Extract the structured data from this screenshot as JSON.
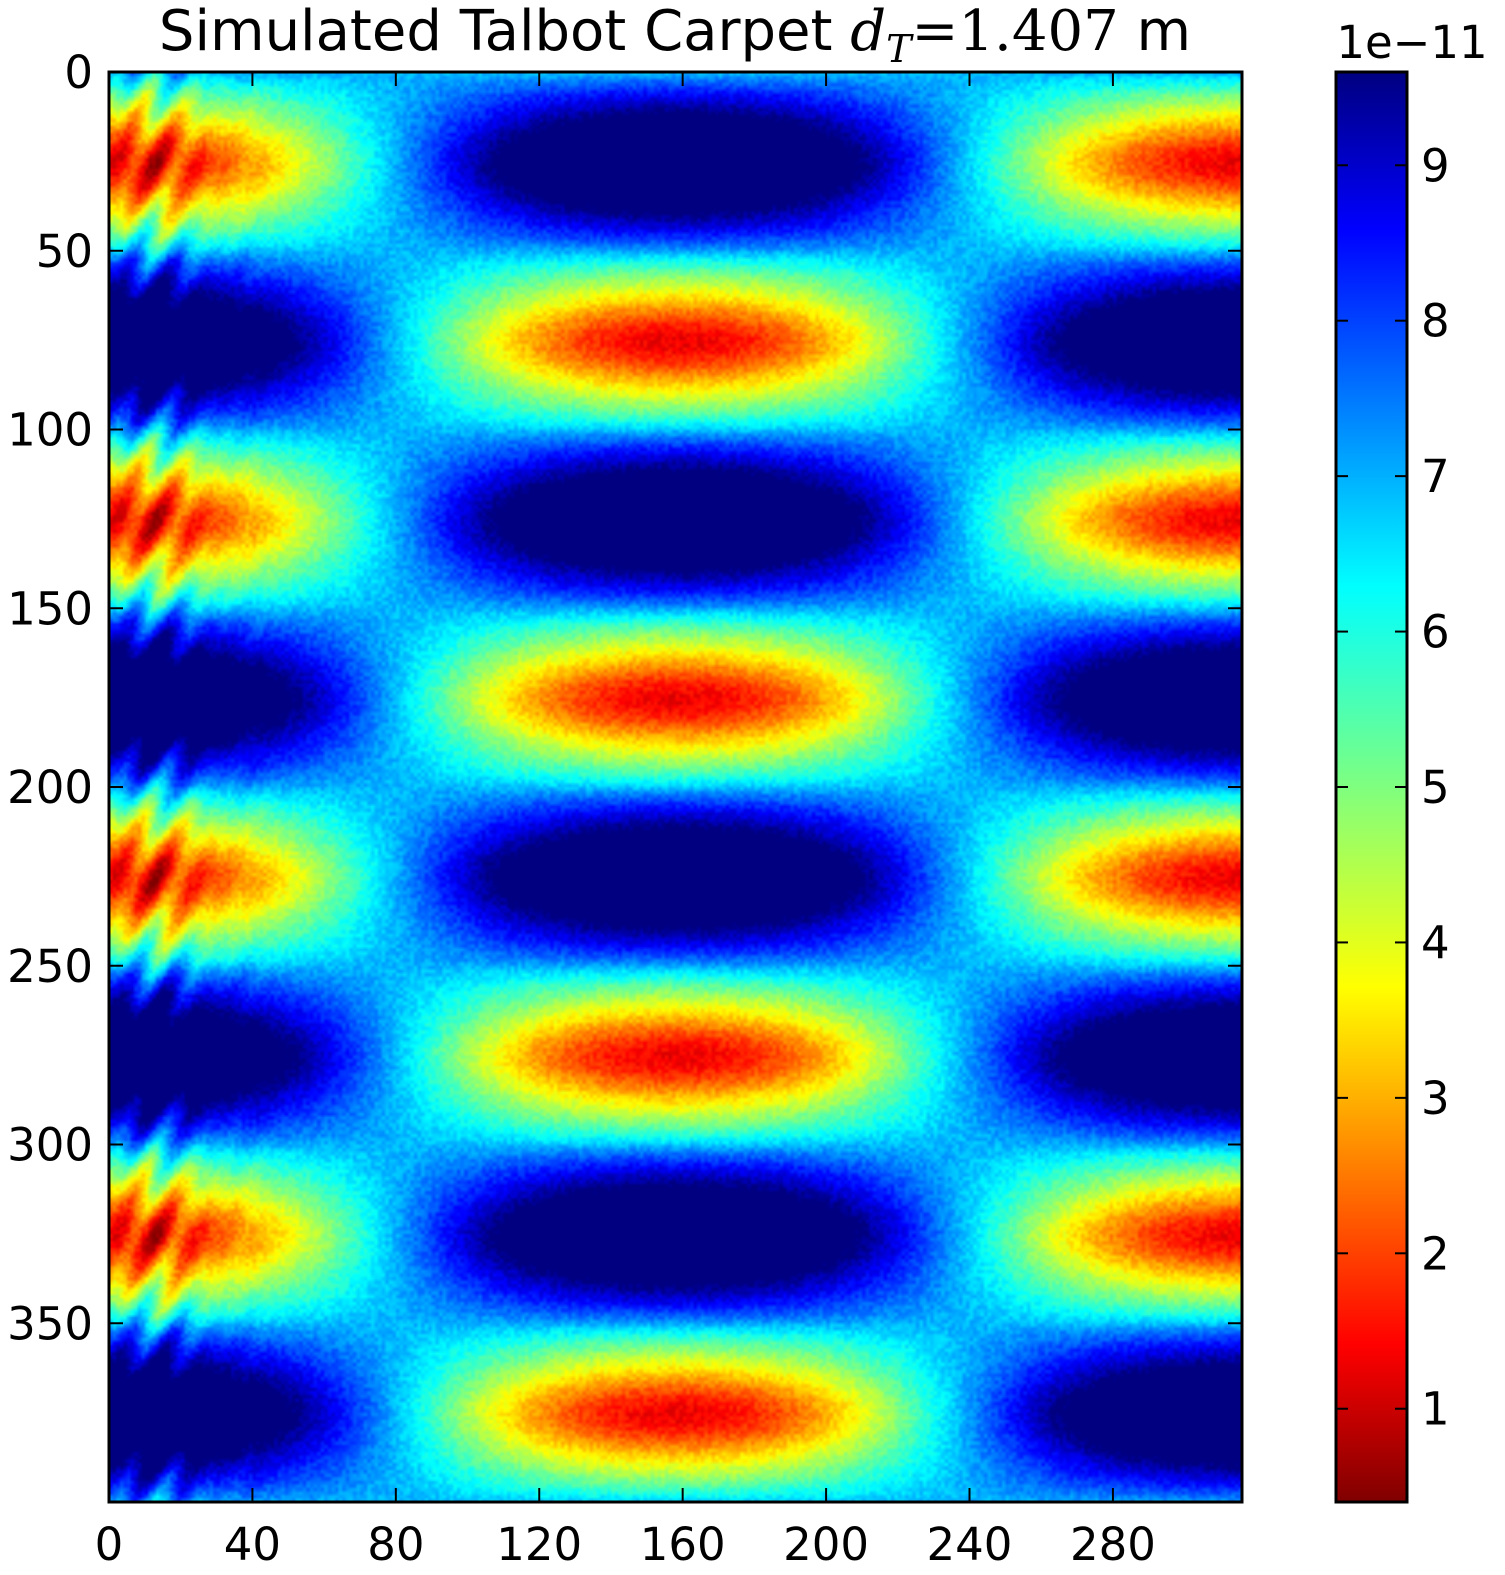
{
  "chart_data": {
    "type": "heatmap",
    "title": {
      "text": "Simulated Talbot Carpet ",
      "math_var": "d",
      "math_sub": "T",
      "math_eq": "=1.407",
      "unit": " m"
    },
    "xlabel": "",
    "ylabel": "",
    "x_range": [
      0,
      316
    ],
    "y_range": [
      0,
      400
    ],
    "y_inverted": true,
    "x_ticks": [
      "0",
      "40",
      "80",
      "120",
      "160",
      "200",
      "240",
      "280"
    ],
    "x_tick_values": [
      0,
      40,
      80,
      120,
      160,
      200,
      240,
      280
    ],
    "y_ticks": [
      "0",
      "50",
      "100",
      "150",
      "200",
      "250",
      "300",
      "350"
    ],
    "y_tick_values": [
      0,
      50,
      100,
      150,
      200,
      250,
      300,
      350
    ],
    "colormap": "jet",
    "colorbar": {
      "min": 0.4,
      "max": 9.6,
      "ticks": [
        "1",
        "2",
        "3",
        "4",
        "5",
        "6",
        "7",
        "8",
        "9"
      ],
      "tick_values": [
        1,
        2,
        3,
        4,
        5,
        6,
        7,
        8,
        9
      ],
      "offset_label": "1e−11"
    },
    "pattern": {
      "grating_period_rows": 50,
      "talbot_length_cols": 316,
      "max_high_rows": [
        25,
        125,
        225,
        325
      ],
      "max_high_cols": [
        80,
        240
      ],
      "min_rows": [
        75,
        175,
        275,
        375
      ]
    }
  }
}
